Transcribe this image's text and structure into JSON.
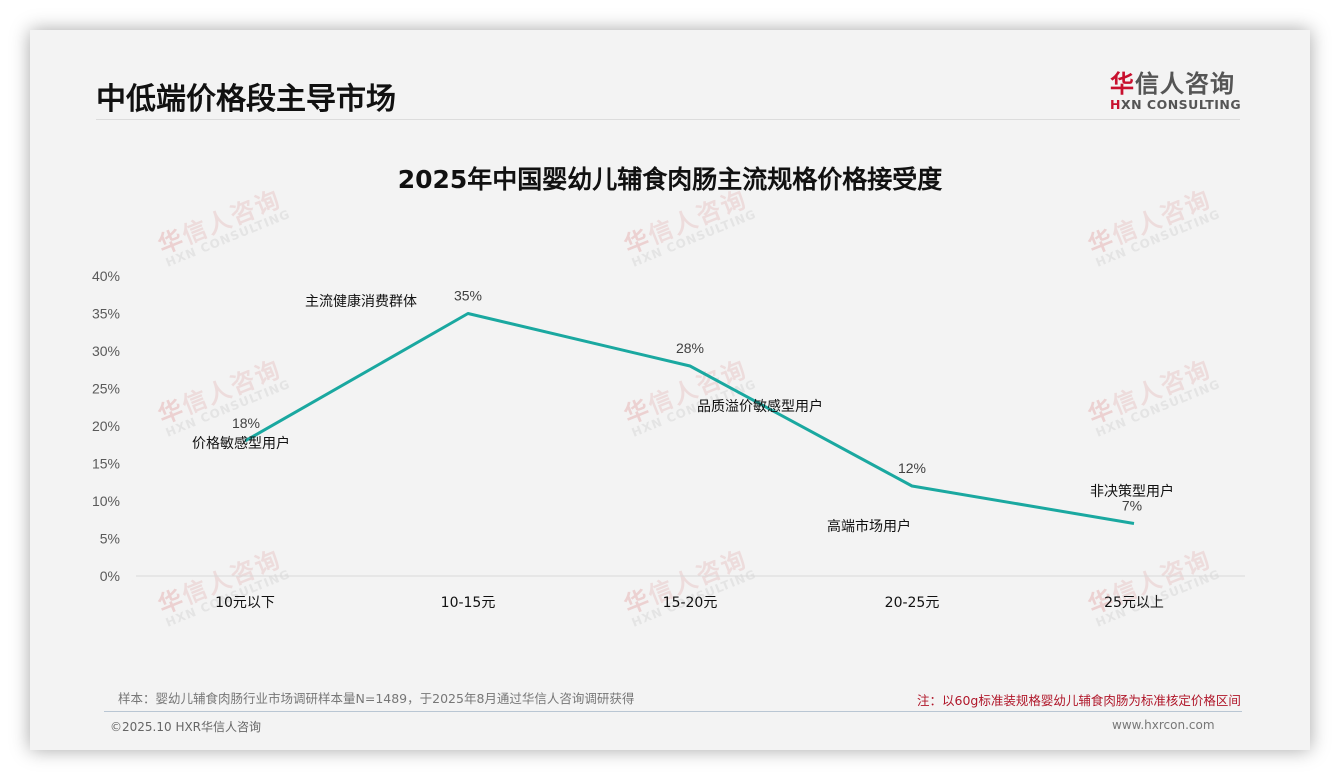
{
  "header": {
    "page_title": "中低端价格段主导市场",
    "logo": {
      "cn_brand_first": "华",
      "cn_brand_rest": "信人咨询",
      "en_first": "H",
      "en_rest": "XN CONSULTING"
    }
  },
  "watermark": {
    "cn": "华信人咨询",
    "en": "HXN CONSULTING"
  },
  "chart_data": {
    "type": "line",
    "title": "2025年中国婴幼儿辅食肉肠主流规格价格接受度",
    "xlabel": "",
    "ylabel": "",
    "categories": [
      "10元以下",
      "10-15元",
      "15-20元",
      "20-25元",
      "25元以上"
    ],
    "series": [
      {
        "name": "价格接受度",
        "values": [
          18,
          35,
          28,
          12,
          7
        ],
        "color": "#1aa8a0"
      }
    ],
    "data_labels": [
      "18%",
      "35%",
      "28%",
      "12%",
      "7%"
    ],
    "annotations": [
      "价格敏感型用户",
      "主流健康消费群体",
      "品质溢价敏感型用户",
      "高端市场用户",
      "非决策型用户"
    ],
    "y_ticks": [
      "0%",
      "5%",
      "10%",
      "15%",
      "20%",
      "25%",
      "30%",
      "35%",
      "40%"
    ],
    "ylim": [
      0,
      40
    ],
    "grid": false,
    "legend": "none"
  },
  "footer": {
    "sample": "样本：婴幼儿辅食肉肠行业市场调研样本量N=1489，于2025年8月通过华信人咨询调研获得",
    "note": "注：以60g标准装规格婴幼儿辅食肉肠为标准核定价格区间",
    "copyright": "©2025.10 HXR华信人咨询",
    "website": "www.hxrcon.com"
  }
}
